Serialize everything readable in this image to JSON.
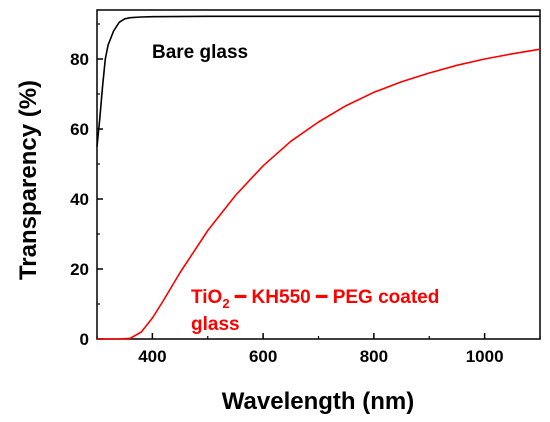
{
  "chart_data": {
    "type": "line",
    "xlabel": "Wavelength (nm)",
    "ylabel": "Transparency (%)",
    "xlim": [
      300,
      1100
    ],
    "ylim": [
      0,
      94
    ],
    "xticks": [
      400,
      600,
      800,
      1000
    ],
    "yticks": [
      0,
      20,
      40,
      60,
      80
    ],
    "grid": false,
    "series": [
      {
        "color": "#000000",
        "x": [
          300,
          305,
          310,
          315,
          320,
          330,
          340,
          350,
          360,
          380,
          400,
          500,
          600,
          700,
          800,
          900,
          1000,
          1100
        ],
        "y": [
          55,
          63,
          72,
          80,
          84,
          88,
          90.5,
          91.5,
          91.8,
          92.0,
          92.1,
          92.2,
          92.2,
          92.2,
          92.2,
          92.2,
          92.2,
          92.2
        ]
      },
      {
        "color": "#ff0000",
        "x": [
          300,
          340,
          360,
          380,
          400,
          420,
          450,
          500,
          550,
          600,
          650,
          700,
          750,
          800,
          850,
          900,
          950,
          1000,
          1050,
          1100
        ],
        "y": [
          0,
          0,
          0.2,
          2,
          6,
          11,
          19,
          31,
          41,
          49.5,
          56.5,
          62,
          66.7,
          70.5,
          73.5,
          76,
          78.2,
          80,
          81.5,
          82.8
        ]
      }
    ],
    "annotations": {
      "bare": "Bare glass",
      "coated_part1": "TiO",
      "coated_sub": "2",
      "coated_part2": " ━ KH550 ━ PEG coated",
      "coated_line2": "glass"
    }
  }
}
